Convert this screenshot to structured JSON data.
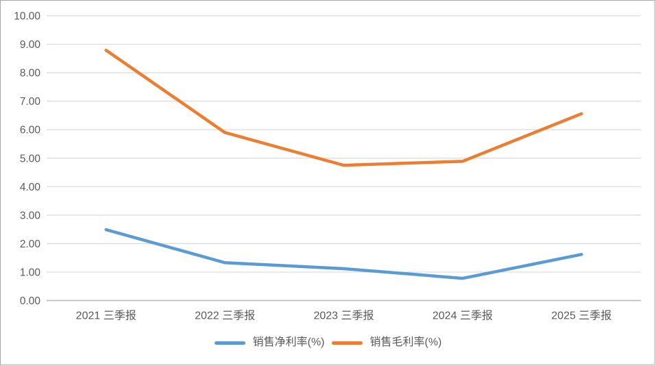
{
  "chart_data": {
    "type": "line",
    "categories": [
      "2021 三季报",
      "2022 三季报",
      "2023 三季报",
      "2024 三季报",
      "2025 三季报"
    ],
    "series": [
      {
        "name": "销售净利率(%)",
        "color": "#5B9BD5",
        "values": [
          2.49,
          1.33,
          1.12,
          0.78,
          1.62
        ]
      },
      {
        "name": "销售毛利率(%)",
        "color": "#ED7D31",
        "values": [
          8.79,
          5.9,
          4.75,
          4.89,
          6.56
        ]
      }
    ],
    "ylim": [
      0,
      10
    ],
    "ytick_step": 1,
    "ytick_decimals": 2,
    "ytick_labels": [
      "0.00",
      "1.00",
      "2.00",
      "3.00",
      "4.00",
      "5.00",
      "6.00",
      "7.00",
      "8.00",
      "9.00",
      "10.00"
    ],
    "grid": "horizontal",
    "legend_position": "bottom",
    "colors": {
      "gridline": "#D9D9D9",
      "axis_line": "#BFBFBF",
      "tick_label": "#595959",
      "background": "#FFFFFF",
      "frame_border": "#A6A6A6"
    }
  }
}
